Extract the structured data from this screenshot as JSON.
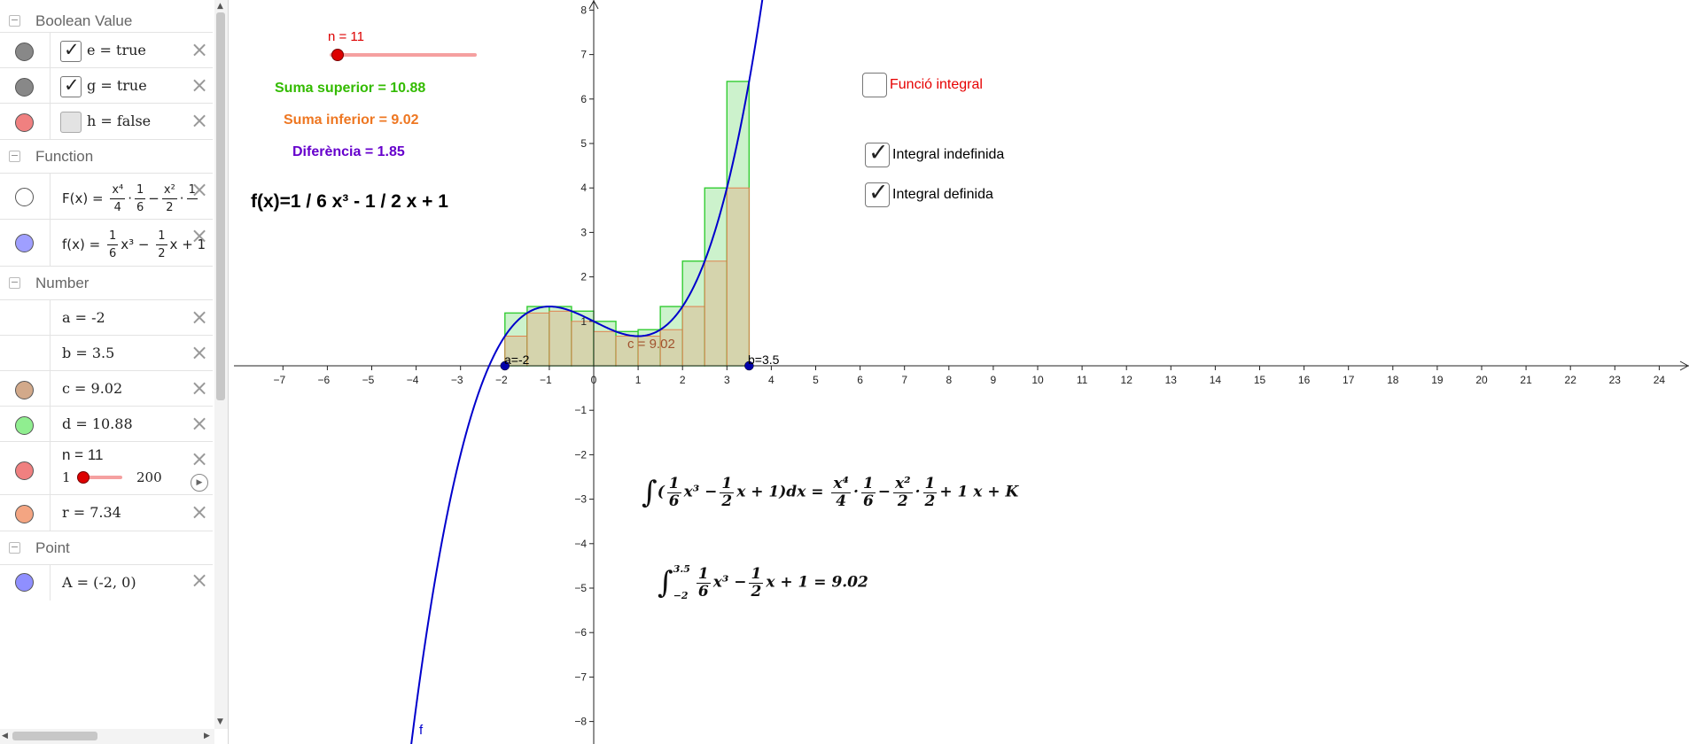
{
  "algebra": {
    "groups": {
      "boolean": "Boolean Value",
      "function": "Function",
      "number": "Number",
      "point": "Point"
    },
    "booleans": [
      {
        "text": "e = true",
        "checked": true,
        "color": "#888888"
      },
      {
        "text": "g = true",
        "checked": true,
        "color": "#888888"
      },
      {
        "text": "h = false",
        "checked": false,
        "color": "#f08080"
      }
    ],
    "functions": {
      "F_lhs": "F(x) =",
      "F_frac1_num": "x⁴",
      "F_frac1_den": "4",
      "F_frac2_num": "1",
      "F_frac2_den": "6",
      "F_frac3_num": "x²",
      "F_frac3_den": "2",
      "F_frac4_num": "1",
      "f_lhs": "f(x) =",
      "f_frac1_num": "1",
      "f_frac1_den": "6",
      "f_x3": "x³",
      "f_frac2_num": "1",
      "f_frac2_den": "2",
      "f_tail": "x + 1"
    },
    "numbers": [
      {
        "text": "a = -2",
        "color": ""
      },
      {
        "text": "b = 3.5",
        "color": ""
      },
      {
        "text": "c = 9.02",
        "color": "#d2a98a"
      },
      {
        "text": "d = 10.88",
        "color": "#90ee90"
      },
      {
        "text": "r = 7.34",
        "color": "#f4a582"
      }
    ],
    "slider_row": {
      "label": "n = 11",
      "min": "1",
      "max": "200",
      "value": 11
    },
    "points": [
      {
        "text": "A = (-2, 0)",
        "color": "#8f8fff"
      }
    ]
  },
  "graph": {
    "slider_label": "n = 11",
    "suma_superior": "Suma superior = 10.88",
    "suma_inferior": "Suma inferior = 9.02",
    "diferencia": "Diferència = 1.85",
    "function_title": "f(x)=1 / 6 x³ - 1 / 2 x + 1",
    "checkboxes": [
      {
        "label": "Funció integral",
        "checked": false,
        "color": "#e60000"
      },
      {
        "label": "Integral indefinida",
        "checked": true,
        "color": "#000000"
      },
      {
        "label": "Integral definida",
        "checked": true,
        "color": "#000000"
      }
    ],
    "point_a_label": "a=-2",
    "point_b_label": "b=3.5",
    "c_label": "c = 9.02",
    "curve_label": "f",
    "indef_integral": {
      "sign": "∫",
      "open": "(",
      "f1n": "1",
      "f1d": "6",
      "x3": "x³",
      "minus": "−",
      "f2n": "1",
      "f2d": "2",
      "x_plus_1": "x + 1)dx =",
      "f3n": "x⁴",
      "f3d": "4",
      "dot": "·",
      "f4n": "1",
      "f4d": "6",
      "f5n": "x²",
      "f5d": "2",
      "f6n": "1",
      "f6d": "2",
      "tail": "+ 1 x + K"
    },
    "def_integral": {
      "sign": "∫",
      "upper": "3.5",
      "lower": "−2",
      "f1n": "1",
      "f1d": "6",
      "x3": "x³",
      "minus": "−",
      "f2n": "1",
      "f2d": "2",
      "tail": "x + 1 = 9.02"
    },
    "axes": {
      "x_ticks": [
        "-7",
        "-6",
        "-5",
        "-4",
        "-3",
        "-2",
        "-1",
        "0",
        "1",
        "2",
        "3",
        "4",
        "5",
        "6",
        "7",
        "8",
        "9",
        "10",
        "11",
        "12",
        "13",
        "14",
        "15",
        "16",
        "17",
        "18",
        "19",
        "20",
        "21",
        "22",
        "23",
        "24"
      ],
      "y_ticks": [
        "8",
        "7",
        "6",
        "5",
        "4",
        "3",
        "2",
        "1",
        "-1",
        "-2",
        "-3",
        "-4",
        "-5",
        "-6",
        "-7",
        "-8"
      ]
    },
    "colors": {
      "upper_fill": "#ccf2cc",
      "upper_stroke": "#33cc33",
      "lower_fill": "#d8c9a3",
      "lower_stroke": "#e0804d",
      "curve": "#0000cc",
      "point": "#0000aa",
      "suma_superior": "#33bb00",
      "suma_inferior": "#ee7722",
      "diferencia": "#6600cc"
    }
  }
}
